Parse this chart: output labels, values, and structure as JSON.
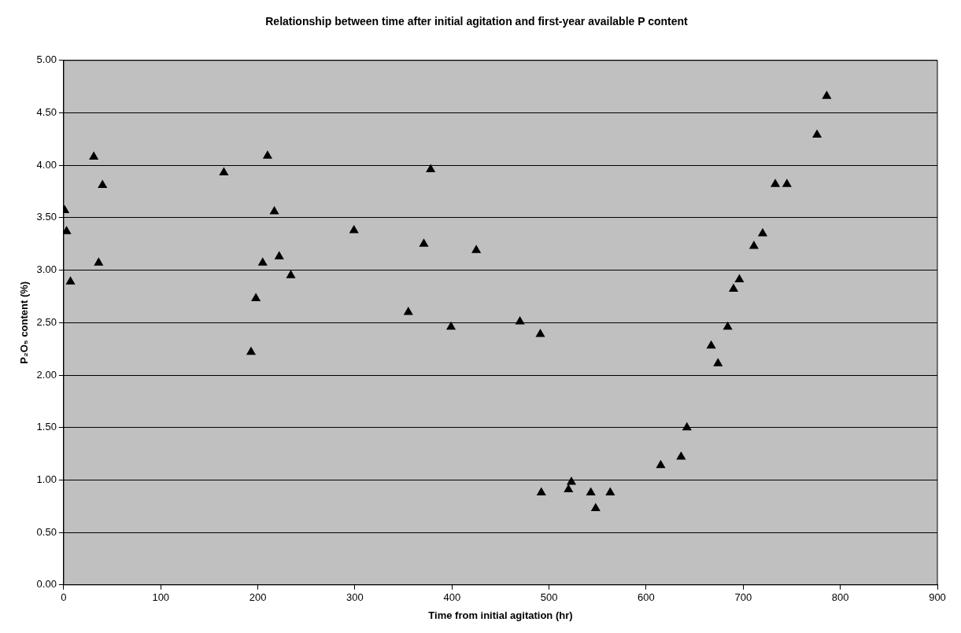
{
  "chart_data": {
    "type": "scatter",
    "title": "Relationship between time after initial agitation and first-year available P content",
    "xlabel": "Time from initial agitation (hr)",
    "ylabel": "P₂O₅ content (%)",
    "series": [
      {
        "color": "#000000",
        "x": [
          1,
          3,
          7,
          31,
          36,
          40,
          165,
          193,
          198,
          205,
          210,
          217,
          222,
          234,
          299,
          355,
          371,
          378,
          399,
          425,
          470,
          491,
          492,
          520,
          523,
          543,
          548,
          563,
          615,
          636,
          642,
          667,
          674,
          684,
          690,
          696,
          711,
          720,
          733,
          745,
          776,
          786
        ],
        "values": [
          3.57,
          3.37,
          2.89,
          4.08,
          3.07,
          3.81,
          3.93,
          2.22,
          2.73,
          3.07,
          4.09,
          3.56,
          3.13,
          2.95,
          3.38,
          2.6,
          3.25,
          3.96,
          2.46,
          3.19,
          2.51,
          2.39,
          0.88,
          0.91,
          0.98,
          0.88,
          0.73,
          0.88,
          1.14,
          1.22,
          1.5,
          2.28,
          2.11,
          2.46,
          2.82,
          2.91,
          3.23,
          3.35,
          3.82,
          3.82,
          4.29,
          4.66
        ]
      }
    ],
    "xlim": [
      0,
      900
    ],
    "xticks": [
      0,
      100,
      200,
      300,
      400,
      500,
      600,
      700,
      800,
      900
    ],
    "ylim": [
      0,
      5
    ],
    "yticks": [
      {
        "value": 0,
        "label": "0.00"
      },
      {
        "value": 0.5,
        "label": "0.50"
      },
      {
        "value": 1,
        "label": "1.00"
      },
      {
        "value": 1.5,
        "label": "1.50"
      },
      {
        "value": 2,
        "label": "2.00"
      },
      {
        "value": 2.5,
        "label": "2.50"
      },
      {
        "value": 3,
        "label": "3.00"
      },
      {
        "value": 3.5,
        "label": "3.50"
      },
      {
        "value": 4,
        "label": "4.00"
      },
      {
        "value": 4.5,
        "label": "4.50"
      },
      {
        "value": 5,
        "label": "5.00"
      }
    ],
    "grid": "y",
    "legend": false,
    "marker": "triangle"
  }
}
